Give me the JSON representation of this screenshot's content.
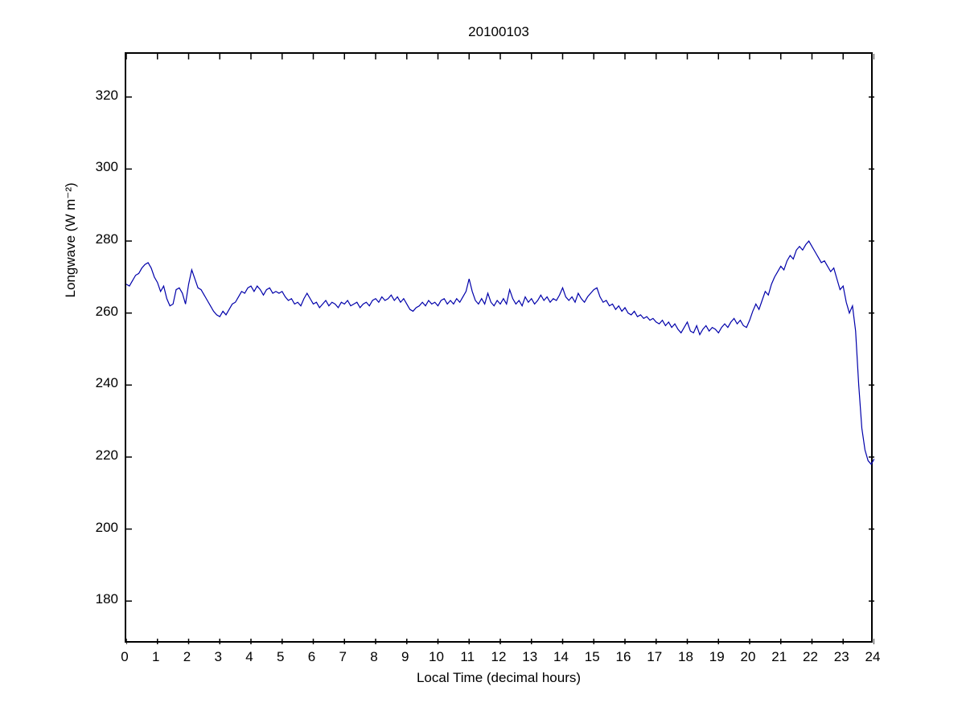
{
  "figure": {
    "background": "#ffffff"
  },
  "chart_data": {
    "type": "line",
    "title": "20100103",
    "xlabel": "Local Time (decimal hours)",
    "ylabel": "Longwave (W m⁻²)",
    "xlim": [
      0,
      24
    ],
    "ylim": [
      168,
      332
    ],
    "xticks": [
      0,
      1,
      2,
      3,
      4,
      5,
      6,
      7,
      8,
      9,
      10,
      11,
      12,
      13,
      14,
      15,
      16,
      17,
      18,
      19,
      20,
      21,
      22,
      23,
      24
    ],
    "yticks": [
      180,
      200,
      220,
      240,
      260,
      280,
      300,
      320
    ],
    "grid": false,
    "legend": null,
    "line_color": "#0000AA",
    "line_width": 1.2,
    "x_start": 0,
    "x_step": 0.1,
    "values": [
      268,
      267.5,
      269,
      270.5,
      271,
      272.5,
      273.5,
      274,
      272.5,
      270,
      268.5,
      266,
      267.5,
      264,
      262,
      262.5,
      266.5,
      267,
      265.5,
      262.5,
      268,
      272,
      269.5,
      267,
      266.5,
      265,
      263.5,
      262,
      260.5,
      259.5,
      259,
      260.5,
      259.5,
      261,
      262.5,
      263,
      264.5,
      266,
      265.5,
      267,
      267.5,
      266,
      267.5,
      266.5,
      265,
      266.5,
      267,
      265.5,
      266,
      265.5,
      266,
      264.5,
      263.5,
      264,
      262.5,
      263,
      262,
      264,
      265.5,
      264,
      262.5,
      263,
      261.5,
      262.5,
      263.5,
      262,
      263,
      262.5,
      261.5,
      263,
      262.5,
      263.5,
      262,
      262.5,
      263,
      261.5,
      262.5,
      263,
      262,
      263.5,
      264,
      263,
      264.5,
      263.5,
      264,
      265,
      263.5,
      264.5,
      263,
      264,
      262.5,
      261,
      260.5,
      261.5,
      262,
      263,
      262,
      263.5,
      262.5,
      263,
      262,
      263.5,
      264,
      262.5,
      263.5,
      262.5,
      264,
      263,
      264.5,
      266,
      269.5,
      266,
      263.5,
      262.5,
      264,
      262.5,
      265.5,
      263,
      262,
      263.5,
      262.5,
      264,
      262.5,
      266.5,
      264,
      262.5,
      263.5,
      262,
      264.5,
      263,
      264,
      262.5,
      263.5,
      265,
      263.5,
      264.5,
      263,
      264,
      263.5,
      265,
      267,
      264.5,
      263.5,
      264.5,
      263,
      265.5,
      264,
      263,
      264.5,
      265.5,
      266.5,
      267,
      264.5,
      263,
      263.5,
      262,
      262.5,
      261,
      262,
      260.5,
      261.5,
      260,
      259.5,
      260.5,
      259,
      259.5,
      258.5,
      259,
      258,
      258.5,
      257.5,
      257,
      258,
      256.5,
      257.5,
      256,
      257,
      255.5,
      254.5,
      256,
      257.5,
      255,
      254.5,
      256.5,
      254,
      255.5,
      256.5,
      255,
      256,
      255.5,
      254.5,
      256,
      257,
      256,
      257.5,
      258.5,
      257,
      258,
      256.5,
      256,
      258,
      260.5,
      262.5,
      261,
      263.5,
      266,
      265,
      268,
      270,
      271.5,
      273,
      272,
      274.5,
      276,
      275,
      277.5,
      278.5,
      277.5,
      279,
      280,
      278.5,
      277,
      275.5,
      274,
      274.5,
      273,
      271.5,
      272.5,
      269.5,
      266.5,
      267.5,
      263,
      260,
      262,
      255,
      240,
      228,
      222,
      219,
      218,
      219.5
    ]
  }
}
